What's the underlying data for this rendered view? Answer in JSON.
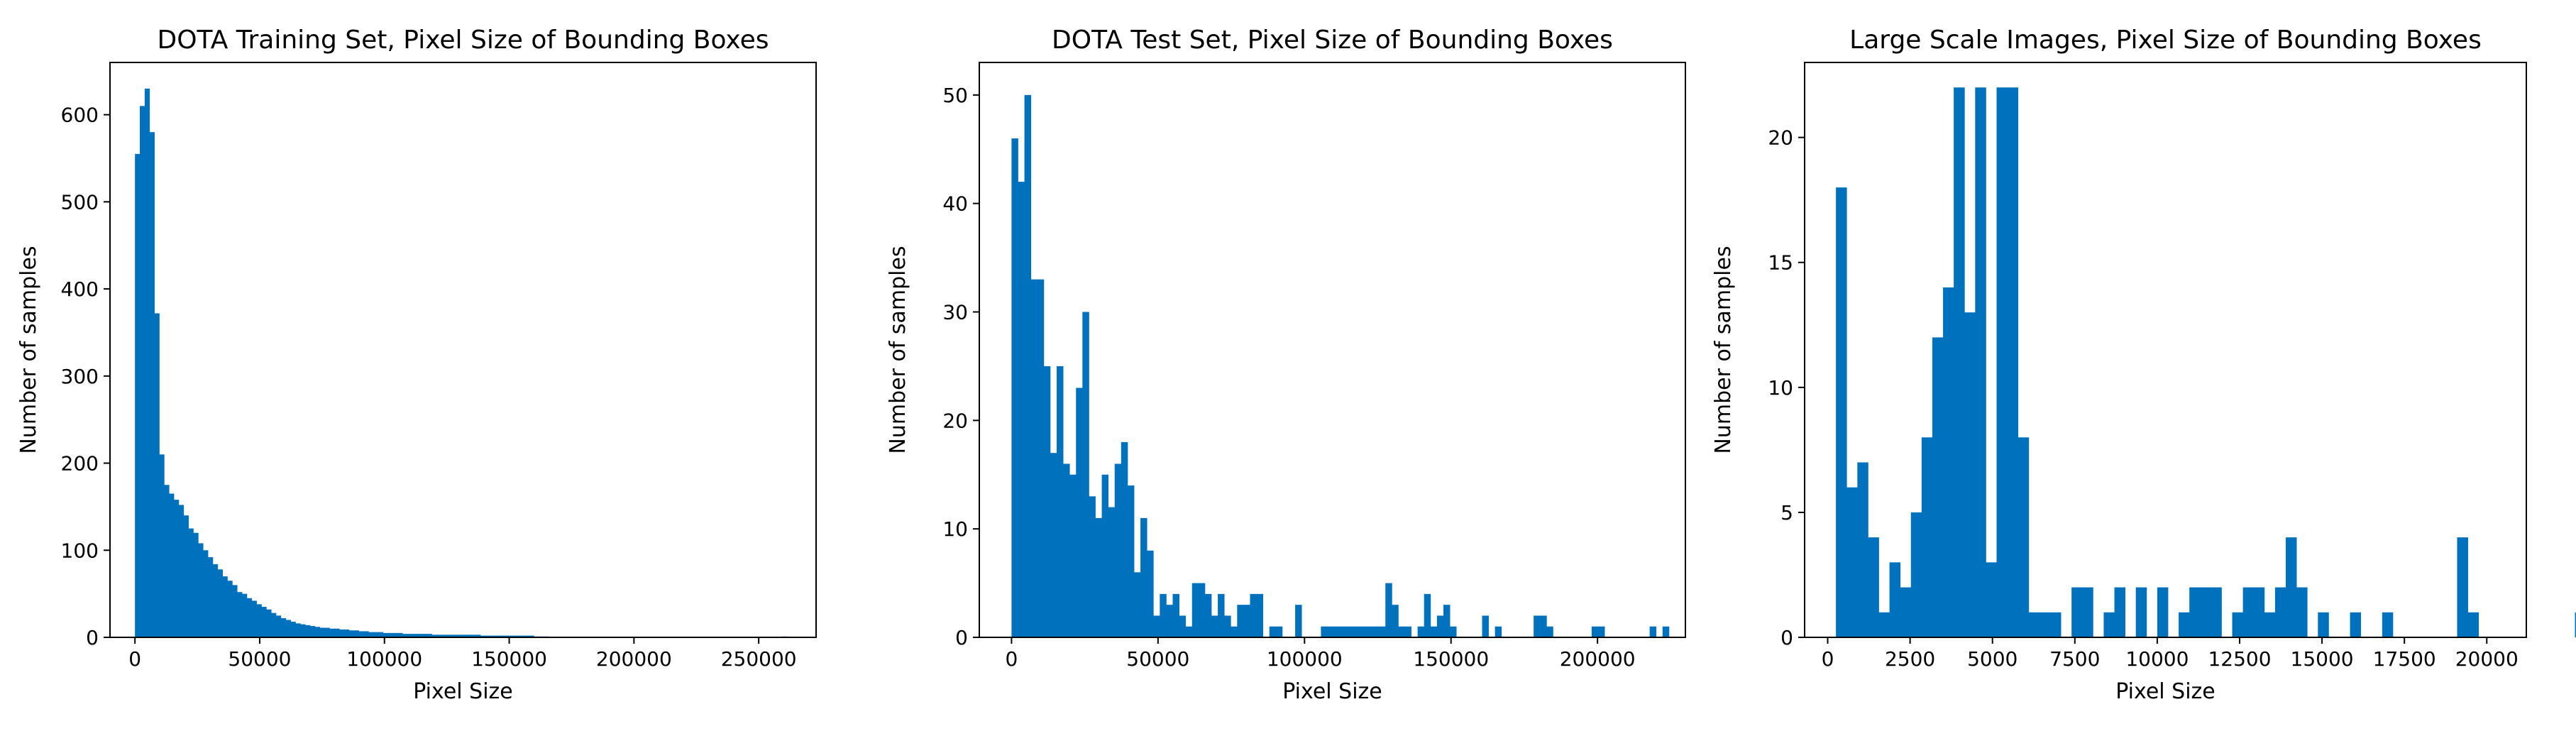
{
  "chart_data": [
    {
      "type": "bar",
      "title": "DOTA Training Set, Pixel Size of Bounding Boxes",
      "xlabel": "Pixel Size",
      "ylabel": "Number of samples",
      "xlim": [
        -10000,
        273000
      ],
      "ylim": [
        0,
        660
      ],
      "xticks": [
        0,
        50000,
        100000,
        150000,
        200000,
        250000
      ],
      "yticks": [
        0,
        100,
        200,
        300,
        400,
        500,
        600
      ],
      "bin_start": 0,
      "bin_width": 1950,
      "values": [
        555,
        610,
        630,
        580,
        372,
        210,
        175,
        165,
        158,
        152,
        140,
        125,
        120,
        108,
        100,
        92,
        84,
        78,
        70,
        65,
        60,
        52,
        50,
        45,
        42,
        38,
        35,
        32,
        28,
        25,
        22,
        20,
        18,
        16,
        15,
        14,
        13,
        12,
        11,
        11,
        10,
        10,
        9,
        9,
        8,
        8,
        7,
        7,
        6,
        6,
        6,
        5,
        5,
        5,
        5,
        4,
        4,
        4,
        4,
        4,
        4,
        3,
        3,
        3,
        3,
        3,
        3,
        3,
        3,
        3,
        3,
        2,
        2,
        2,
        2,
        2,
        2,
        2,
        2,
        2,
        2,
        2,
        1,
        1,
        1,
        0,
        0,
        0,
        0,
        0,
        0,
        0,
        0,
        0,
        0,
        0,
        0,
        0,
        0,
        0,
        0,
        0,
        0,
        0,
        0,
        0,
        0,
        0,
        0,
        0,
        0,
        0,
        0,
        0,
        0,
        0,
        0,
        0,
        0,
        0,
        0,
        0,
        0,
        0,
        0,
        0,
        0,
        0,
        0,
        0,
        0,
        0,
        0,
        1
      ]
    },
    {
      "type": "bar",
      "title": "DOTA Test Set, Pixel Size of Bounding Boxes",
      "xlabel": "Pixel Size",
      "ylabel": "Number of samples",
      "xlim": [
        -11000,
        230000
      ],
      "ylim": [
        0,
        53
      ],
      "xticks": [
        0,
        50000,
        100000,
        150000,
        200000
      ],
      "yticks": [
        0,
        10,
        20,
        30,
        40,
        50
      ],
      "bin_start": 0,
      "bin_width": 2200,
      "values": [
        46,
        42,
        50,
        33,
        33,
        25,
        17,
        25,
        16,
        15,
        23,
        30,
        13,
        11,
        15,
        12,
        16,
        18,
        14,
        6,
        11,
        8,
        2,
        4,
        3,
        4,
        2,
        1,
        5,
        5,
        4,
        2,
        4,
        2,
        1,
        3,
        3,
        4,
        4,
        0,
        1,
        1,
        0,
        0,
        3,
        0,
        0,
        0,
        1,
        1,
        1,
        1,
        1,
        1,
        1,
        1,
        1,
        1,
        5,
        3,
        1,
        1,
        0,
        1,
        4,
        1,
        2,
        3,
        1,
        0,
        0,
        0,
        0,
        2,
        0,
        1,
        0,
        0,
        0,
        0,
        0,
        2,
        2,
        1,
        0,
        0,
        0,
        0,
        0,
        0,
        1,
        1,
        0,
        0,
        0,
        0,
        0,
        0,
        0,
        1,
        0,
        1
      ]
    },
    {
      "type": "bar",
      "title": "Large Scale Images, Pixel Size of Bounding Boxes",
      "xlabel": "Pixel Size",
      "ylabel": "Number of samples",
      "xlim": [
        -700,
        21200
      ],
      "ylim": [
        0,
        23
      ],
      "xticks": [
        0,
        2500,
        5000,
        7500,
        10000,
        12500,
        15000,
        17500,
        20000
      ],
      "yticks": [
        0,
        5,
        10,
        15,
        20
      ],
      "bin_start": 250,
      "bin_width": 325,
      "values": [
        18,
        6,
        7,
        4,
        1,
        3,
        2,
        5,
        8,
        12,
        14,
        22,
        13,
        22,
        3,
        22,
        22,
        8,
        1,
        1,
        1,
        0,
        2,
        2,
        0,
        1,
        2,
        0,
        2,
        0,
        2,
        0,
        1,
        2,
        2,
        2,
        0,
        1,
        2,
        2,
        1,
        2,
        4,
        2,
        0,
        1,
        0,
        0,
        1,
        0,
        0,
        1,
        0,
        0,
        0,
        0,
        0,
        0,
        4,
        1,
        0,
        0,
        0,
        0,
        0,
        0,
        0,
        0,
        0,
        1
      ]
    }
  ]
}
